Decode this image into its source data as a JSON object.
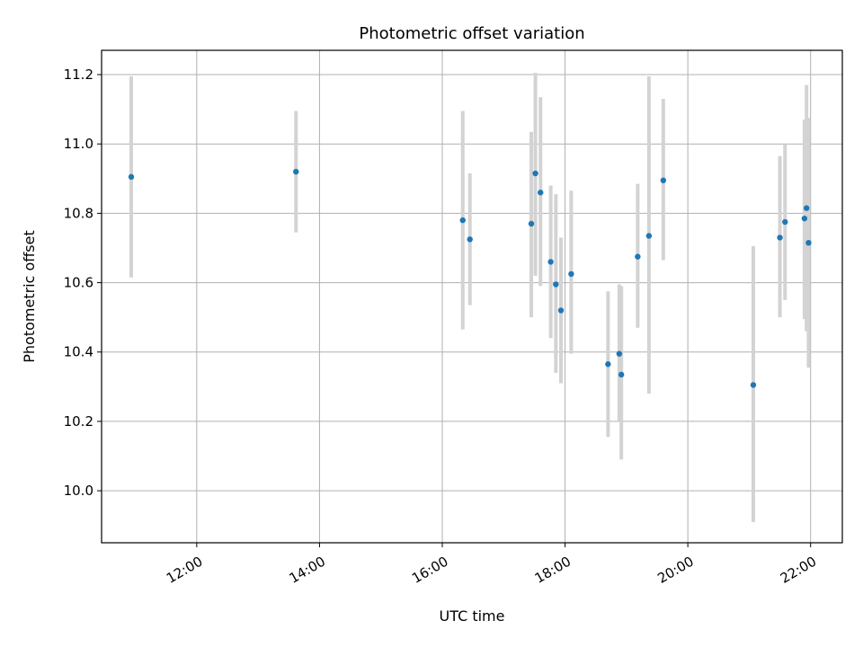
{
  "chart_data": {
    "type": "scatter",
    "title": "Photometric offset variation",
    "xlabel": "UTC time",
    "ylabel": "Photometric offset",
    "x_ticks": [
      "12:00",
      "14:00",
      "16:00",
      "18:00",
      "20:00",
      "22:00"
    ],
    "x_tick_values": [
      "12:00",
      "14:00",
      "16:00",
      "18:00",
      "20:00",
      "22:00"
    ],
    "y_ticks": [
      "10.0",
      "10.2",
      "10.4",
      "10.6",
      "10.8",
      "11.0",
      "11.2"
    ],
    "xlim": [
      "10:27",
      "22:31"
    ],
    "ylim": [
      9.85,
      11.27
    ],
    "grid": true,
    "colors": {
      "point": "#1f77b4",
      "errorbar": "#d3d3d3",
      "grid": "#b0b0b0"
    },
    "points": [
      {
        "x": "10:56",
        "y": 10.905,
        "ylow": 10.615,
        "yhigh": 11.195
      },
      {
        "x": "13:37",
        "y": 10.92,
        "ylow": 10.745,
        "yhigh": 11.095
      },
      {
        "x": "16:20",
        "y": 10.78,
        "ylow": 10.465,
        "yhigh": 11.095
      },
      {
        "x": "16:27",
        "y": 10.725,
        "ylow": 10.535,
        "yhigh": 10.915
      },
      {
        "x": "17:27",
        "y": 10.77,
        "ylow": 10.5,
        "yhigh": 11.035
      },
      {
        "x": "17:31",
        "y": 10.915,
        "ylow": 10.62,
        "yhigh": 11.205
      },
      {
        "x": "17:36",
        "y": 10.86,
        "ylow": 10.59,
        "yhigh": 11.135
      },
      {
        "x": "17:46",
        "y": 10.66,
        "ylow": 10.44,
        "yhigh": 10.88
      },
      {
        "x": "17:51",
        "y": 10.595,
        "ylow": 10.34,
        "yhigh": 10.855
      },
      {
        "x": "17:56",
        "y": 10.52,
        "ylow": 10.31,
        "yhigh": 10.73
      },
      {
        "x": "18:06",
        "y": 10.625,
        "ylow": 10.395,
        "yhigh": 10.865
      },
      {
        "x": "18:42",
        "y": 10.365,
        "ylow": 10.155,
        "yhigh": 10.575
      },
      {
        "x": "18:53",
        "y": 10.395,
        "ylow": 10.2,
        "yhigh": 10.595
      },
      {
        "x": "18:55",
        "y": 10.335,
        "ylow": 10.09,
        "yhigh": 10.59
      },
      {
        "x": "19:11",
        "y": 10.675,
        "ylow": 10.47,
        "yhigh": 10.885
      },
      {
        "x": "19:22",
        "y": 10.735,
        "ylow": 10.28,
        "yhigh": 11.195
      },
      {
        "x": "19:36",
        "y": 10.895,
        "ylow": 10.665,
        "yhigh": 11.13
      },
      {
        "x": "21:04",
        "y": 10.305,
        "ylow": 9.91,
        "yhigh": 10.705
      },
      {
        "x": "21:30",
        "y": 10.73,
        "ylow": 10.5,
        "yhigh": 10.965
      },
      {
        "x": "21:35",
        "y": 10.775,
        "ylow": 10.55,
        "yhigh": 11.0
      },
      {
        "x": "21:54",
        "y": 10.785,
        "ylow": 10.495,
        "yhigh": 11.07
      },
      {
        "x": "21:56",
        "y": 10.815,
        "ylow": 10.46,
        "yhigh": 11.17
      },
      {
        "x": "21:58",
        "y": 10.715,
        "ylow": 10.355,
        "yhigh": 11.075
      }
    ]
  }
}
